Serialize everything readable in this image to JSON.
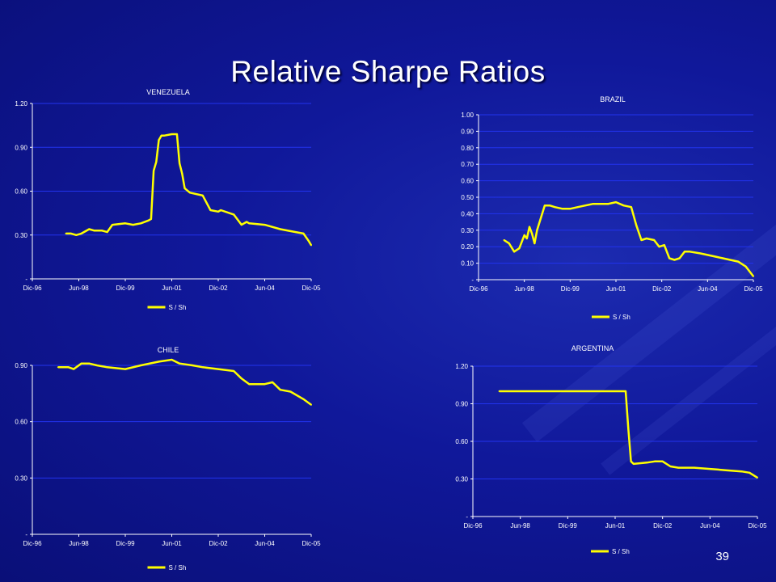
{
  "slide": {
    "title": "Relative Sharpe Ratios",
    "page_number": "39"
  },
  "colors": {
    "series": "#ffff00",
    "grid": "#2233ee",
    "axis": "#ffffff",
    "background": "#1018a0"
  },
  "chart_data": [
    {
      "type": "line",
      "title": "VENEZUELA",
      "x_ticks": [
        "Dic-96",
        "Jun-98",
        "Dic-99",
        "Jun-01",
        "Dic-02",
        "Jun-04",
        "Dic-05"
      ],
      "y_ticks": [
        "-",
        "0.30",
        "0.60",
        "0.90",
        "1.20"
      ],
      "ylim": [
        0,
        1.2
      ],
      "series": [
        {
          "name": "S / Sh",
          "x": [
            "Jan-98",
            "Mar-98",
            "May-98",
            "Jul-98",
            "Oct-98",
            "Dec-98",
            "Mar-99",
            "May-99",
            "Jul-99",
            "Dec-99",
            "Mar-00",
            "Jun-00",
            "Sep-00",
            "Oct-00",
            "Nov-00",
            "Dec-00",
            "Jan-01",
            "Feb-01",
            "Mar-01",
            "Jun-01",
            "Aug-01",
            "Sep-01",
            "Oct-01",
            "Nov-01",
            "Jan-02",
            "Jun-02",
            "Sep-02",
            "Dec-02",
            "Jan-03",
            "Jun-03",
            "Sep-03",
            "Nov-03",
            "Dec-03",
            "Jun-04",
            "Dec-04",
            "Jun-05",
            "Sep-05",
            "Nov-05",
            "Dec-05"
          ],
          "values": [
            0.31,
            0.31,
            0.3,
            0.31,
            0.34,
            0.33,
            0.33,
            0.32,
            0.37,
            0.38,
            0.37,
            0.38,
            0.4,
            0.41,
            0.74,
            0.8,
            0.95,
            0.98,
            0.98,
            0.99,
            0.99,
            0.79,
            0.72,
            0.62,
            0.59,
            0.57,
            0.47,
            0.46,
            0.47,
            0.44,
            0.37,
            0.39,
            0.38,
            0.37,
            0.34,
            0.32,
            0.31,
            0.26,
            0.23
          ]
        }
      ]
    },
    {
      "type": "line",
      "title": "BRAZIL",
      "x_ticks": [
        "Dic-96",
        "Jun-98",
        "Dic-99",
        "Jun-01",
        "Dic-02",
        "Jun-04",
        "Dic-05"
      ],
      "y_ticks": [
        "-",
        "0.10",
        "0.20",
        "0.30",
        "0.40",
        "0.50",
        "0.60",
        "0.70",
        "0.80",
        "0.90",
        "1.00"
      ],
      "ylim": [
        0,
        1.0
      ],
      "series": [
        {
          "name": "S / Sh",
          "x": [
            "Oct-97",
            "Dec-97",
            "Feb-98",
            "Apr-98",
            "Jun-98",
            "Jul-98",
            "Aug-98",
            "Sep-98",
            "Oct-98",
            "Nov-98",
            "Feb-99",
            "Apr-99",
            "Jun-99",
            "Sep-99",
            "Dec-99",
            "Mar-00",
            "Jun-00",
            "Sep-00",
            "Dec-00",
            "Mar-01",
            "Jun-01",
            "Sep-01",
            "Dec-01",
            "Feb-02",
            "Apr-02",
            "Jun-02",
            "Sep-02",
            "Nov-02",
            "Jan-03",
            "Mar-03",
            "May-03",
            "Jul-03",
            "Sep-03",
            "Nov-03",
            "Mar-04",
            "Jun-04",
            "Dec-04",
            "Jun-05",
            "Sep-05",
            "Dec-05"
          ],
          "values": [
            0.24,
            0.22,
            0.17,
            0.19,
            0.27,
            0.25,
            0.32,
            0.28,
            0.22,
            0.3,
            0.45,
            0.45,
            0.44,
            0.43,
            0.43,
            0.44,
            0.45,
            0.46,
            0.46,
            0.46,
            0.47,
            0.45,
            0.44,
            0.33,
            0.24,
            0.25,
            0.24,
            0.2,
            0.21,
            0.13,
            0.12,
            0.13,
            0.17,
            0.17,
            0.16,
            0.15,
            0.13,
            0.11,
            0.08,
            0.02
          ]
        }
      ]
    },
    {
      "type": "line",
      "title": "CHILE",
      "x_ticks": [
        "Dic-96",
        "Jun-98",
        "Dic-99",
        "Jun-01",
        "Dic-02",
        "Jun-04",
        "Dic-05"
      ],
      "y_ticks": [
        "-",
        "0.30",
        "0.60",
        "0.90"
      ],
      "ylim": [
        0,
        0.9
      ],
      "series": [
        {
          "name": "S / Sh",
          "x": [
            "Oct-97",
            "Feb-98",
            "Apr-98",
            "Jul-98",
            "Oct-98",
            "Jan-99",
            "May-99",
            "Dec-99",
            "Jun-00",
            "Jan-01",
            "Jun-01",
            "Sep-01",
            "Feb-02",
            "Jun-02",
            "Dec-02",
            "Jun-03",
            "Sep-03",
            "Dec-03",
            "Jun-04",
            "Sep-04",
            "Dec-04",
            "Apr-05",
            "Sep-05",
            "Dec-05"
          ],
          "values": [
            0.89,
            0.89,
            0.88,
            0.91,
            0.91,
            0.9,
            0.89,
            0.88,
            0.9,
            0.92,
            0.93,
            0.91,
            0.9,
            0.89,
            0.88,
            0.87,
            0.83,
            0.8,
            0.8,
            0.81,
            0.77,
            0.76,
            0.72,
            0.69
          ]
        }
      ]
    },
    {
      "type": "line",
      "title": "ARGENTINA",
      "x_ticks": [
        "Dic-96",
        "Jun-98",
        "Dic-99",
        "Jun-01",
        "Dic-02",
        "Jun-04",
        "Dic-05"
      ],
      "y_ticks": [
        "-",
        "0.30",
        "0.60",
        "0.90",
        "1.20"
      ],
      "ylim": [
        0,
        1.2
      ],
      "series": [
        {
          "name": "S / Sh",
          "x": [
            "Oct-97",
            "Oct-01",
            "Nov-01",
            "Dec-01",
            "Jan-02",
            "Jun-02",
            "Sep-02",
            "Dec-02",
            "Mar-03",
            "Jun-03",
            "Dec-03",
            "Jun-04",
            "Dec-04",
            "Jun-05",
            "Sep-05",
            "Dec-05"
          ],
          "values": [
            1.0,
            1.0,
            0.7,
            0.44,
            0.42,
            0.43,
            0.44,
            0.44,
            0.4,
            0.39,
            0.39,
            0.38,
            0.37,
            0.36,
            0.35,
            0.31
          ]
        }
      ]
    }
  ]
}
